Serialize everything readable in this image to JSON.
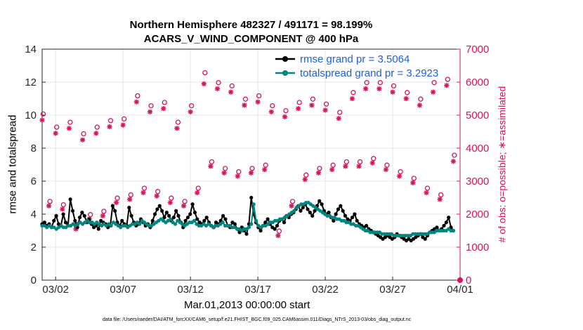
{
  "title": {
    "line1": "Northern Hemisphere 482327 / 491171 = 98.199%",
    "line2": "ACARS_V_WIND_COMPONENT @ 400 hPa"
  },
  "footer": "data file: /Users/raeder/DAI/ATM_forcXX/CAM6_setup/f.e21.FHIST_BGC.f09_025.CAM6assim.011/Diags_NTrS_2013-03/obs_diag_output.nc",
  "colors": {
    "rmse": "#000000",
    "spread": "#00857f",
    "obs": "#d6145a",
    "grid": "#e6e6e6",
    "legend_text": "#1f5fd6"
  },
  "chart_data": {
    "type": "line",
    "xlabel": "Mar.01,2013 00:00:00 start",
    "x_tick_labels": [
      "03/02",
      "03/07",
      "03/12",
      "03/17",
      "03/22",
      "03/27",
      "04/01"
    ],
    "x_tick_days": [
      1,
      6,
      11,
      16,
      21,
      26,
      31
    ],
    "xlim_days": [
      0,
      31
    ],
    "left_axis": {
      "label": "rmse and totalspread",
      "ylim": [
        0,
        14
      ],
      "ticks": [
        0,
        2,
        4,
        6,
        8,
        10,
        12,
        14
      ]
    },
    "right_axis": {
      "label": "# of obs: o=possible; ∗=assimilated",
      "ylim": [
        0,
        7000
      ],
      "ticks": [
        0,
        1000,
        2000,
        3000,
        4000,
        5000,
        6000,
        7000
      ]
    },
    "legend": {
      "position": "top-right",
      "entries": [
        "rmse grand pr = 3.5064",
        "totalspread grand pr = 3.2923"
      ]
    },
    "grid": true,
    "series": [
      {
        "name": "rmse grand pr = 3.5064",
        "axis": "left",
        "values": [
          3.4,
          3.5,
          3.3,
          3.4,
          3.2,
          3.6,
          3.9,
          3.4,
          3.3,
          4.0,
          3.5,
          3.3,
          4.9,
          4.2,
          3.6,
          3.2,
          3.8,
          4.1,
          3.9,
          3.5,
          3.7,
          3.4,
          3.2,
          3.3,
          3.1,
          3.6,
          3.5,
          3.4,
          3.2,
          3.3,
          4.5,
          4.2,
          3.5,
          3.3,
          3.6,
          3.4,
          3.3,
          4.4,
          3.9,
          3.5,
          3.3,
          3.4,
          3.7,
          3.5,
          3.3,
          3.4,
          3.2,
          3.6,
          4.0,
          4.3,
          4.5,
          4.2,
          3.8,
          4.1,
          3.9,
          3.6,
          3.8,
          4.2,
          3.9,
          3.5,
          3.2,
          3.6,
          3.8,
          4.0,
          4.6,
          4.1,
          3.7,
          3.5,
          3.4,
          3.6,
          3.8,
          3.5,
          3.3,
          3.2,
          3.5,
          3.4,
          3.6,
          3.9,
          3.7,
          3.3,
          3.2,
          3.5,
          3.4,
          3.1,
          2.9,
          3.2,
          3.0,
          2.8,
          3.4,
          5.0,
          4.0,
          3.5,
          3.2,
          3.0,
          3.3,
          3.5,
          3.7,
          3.4,
          3.2,
          3.1,
          3.3,
          3.6,
          3.7,
          3.5,
          3.9,
          3.8,
          4.0,
          4.1,
          4.3,
          4.5,
          4.2,
          4.4,
          4.6,
          4.3,
          4.1,
          3.9,
          4.2,
          4.5,
          4.8,
          4.6,
          4.2,
          4.0,
          4.1,
          3.8,
          3.6,
          4.0,
          4.3,
          4.5,
          4.2,
          3.9,
          3.7,
          3.6,
          3.8,
          4.0,
          3.6,
          3.4,
          3.3,
          3.2,
          3.3,
          3.1,
          3.0,
          2.9,
          2.8,
          2.7,
          2.6,
          2.5,
          2.6,
          2.7,
          2.6,
          2.5,
          2.6,
          2.8,
          2.7,
          2.6,
          2.5,
          2.4,
          2.5,
          2.4,
          2.5,
          2.6,
          2.7,
          2.8,
          2.6,
          2.5,
          2.7,
          2.9,
          3.0,
          3.1,
          3.2,
          3.0,
          3.1,
          3.3,
          3.5,
          3.8,
          3.2,
          3.0
        ]
      },
      {
        "name": "totalspread grand pr = 3.2923",
        "axis": "left",
        "values": [
          3.3,
          3.3,
          3.2,
          3.3,
          3.2,
          3.2,
          3.1,
          3.2,
          3.3,
          3.2,
          3.2,
          3.3,
          3.3,
          3.4,
          3.3,
          3.4,
          3.5,
          3.4,
          3.5,
          3.6,
          3.5,
          3.5,
          3.4,
          3.5,
          3.4,
          3.3,
          3.4,
          3.3,
          3.4,
          3.3,
          3.5,
          3.4,
          3.3,
          3.2,
          3.3,
          3.3,
          3.2,
          3.3,
          3.4,
          3.4,
          3.5,
          3.4,
          3.6,
          3.5,
          3.4,
          3.3,
          3.3,
          3.4,
          3.5,
          3.6,
          3.7,
          3.6,
          3.5,
          3.6,
          3.7,
          3.5,
          3.4,
          3.6,
          3.5,
          3.4,
          3.3,
          3.4,
          3.5,
          3.5,
          3.6,
          3.4,
          3.3,
          3.3,
          3.4,
          3.3,
          3.4,
          3.3,
          3.2,
          3.3,
          3.3,
          3.4,
          3.5,
          3.3,
          3.3,
          3.3,
          3.2,
          3.2,
          3.1,
          3.1,
          3.0,
          3.1,
          3.1,
          3.2,
          3.4,
          4.6,
          3.6,
          3.3,
          3.2,
          3.3,
          3.3,
          3.4,
          3.5,
          3.5,
          3.6,
          3.6,
          3.7,
          3.7,
          3.8,
          3.9,
          4.0,
          4.1,
          4.2,
          4.4,
          4.5,
          4.6,
          4.6,
          4.7,
          4.7,
          4.6,
          4.5,
          4.4,
          4.3,
          4.2,
          4.1,
          4.0,
          3.9,
          3.9,
          3.8,
          3.8,
          3.7,
          3.7,
          3.6,
          3.6,
          3.5,
          3.5,
          3.4,
          3.4,
          3.3,
          3.3,
          3.2,
          3.1,
          3.0,
          3.0,
          2.9,
          2.9,
          2.9,
          2.9,
          2.9,
          2.8,
          2.8,
          2.8,
          2.8,
          2.8,
          2.7,
          2.7,
          2.7,
          2.7,
          2.7,
          2.7,
          2.7,
          2.7,
          2.8,
          2.8,
          2.8,
          2.8,
          2.8,
          2.8,
          2.8,
          2.9,
          2.9,
          2.9,
          3.0,
          3.0,
          3.0,
          3.0,
          3.0,
          3.1,
          3.0,
          3.0
        ]
      }
    ],
    "obs_days": [
      0.0,
      0.5,
      1.0,
      1.5,
      2.0,
      2.5,
      3.0,
      3.5,
      4.0,
      4.5,
      5.0,
      5.5,
      6.0,
      6.5,
      7.0,
      7.5,
      8.0,
      8.5,
      9.0,
      9.5,
      10.0,
      10.5,
      11.0,
      11.5,
      12.0,
      12.5,
      13.0,
      13.5,
      14.0,
      14.5,
      15.0,
      15.5,
      16.0,
      16.5,
      17.0,
      17.5,
      18.0,
      18.5,
      19.0,
      19.5,
      20.0,
      20.5,
      21.0,
      21.5,
      22.0,
      22.5,
      23.0,
      23.5,
      24.0,
      24.5,
      25.0,
      25.5,
      26.0,
      26.5,
      27.0,
      27.5,
      28.0,
      28.5,
      29.0,
      29.5,
      30.0,
      30.5
    ],
    "obs_possible": [
      4950,
      2300,
      4550,
      2200,
      4700,
      1600,
      4350,
      1900,
      4550,
      2000,
      4750,
      2400,
      4800,
      2500,
      5500,
      2700,
      5200,
      2600,
      5300,
      2400,
      4700,
      2300,
      5200,
      2700,
      6200,
      3500,
      5900,
      3300,
      5800,
      3200,
      5400,
      3300,
      5500,
      3400,
      5200,
      1400,
      5050,
      2300,
      5300,
      3100,
      5400,
      3300,
      5250,
      3400,
      5000,
      3500,
      5600,
      3500,
      5900,
      3600,
      5900,
      3400,
      5800,
      3200,
      5600,
      3000,
      5400,
      2700,
      5900,
      2500,
      6000,
      3700
    ],
    "obs_assimilated": [
      4850,
      2250,
      4450,
      2150,
      4600,
      1550,
      4250,
      1850,
      4450,
      1950,
      4650,
      2350,
      4700,
      2450,
      5400,
      2650,
      5100,
      2550,
      5200,
      2350,
      4600,
      2250,
      5100,
      2650,
      5950,
      3450,
      5800,
      3250,
      5700,
      3150,
      5300,
      3250,
      5400,
      3350,
      5100,
      1350,
      4950,
      2250,
      5200,
      3050,
      5300,
      3250,
      5150,
      3350,
      4900,
      3450,
      5500,
      3450,
      5800,
      3550,
      5800,
      3350,
      5700,
      3150,
      5500,
      2950,
      5300,
      2650,
      5700,
      2450,
      5900,
      3600
    ]
  }
}
